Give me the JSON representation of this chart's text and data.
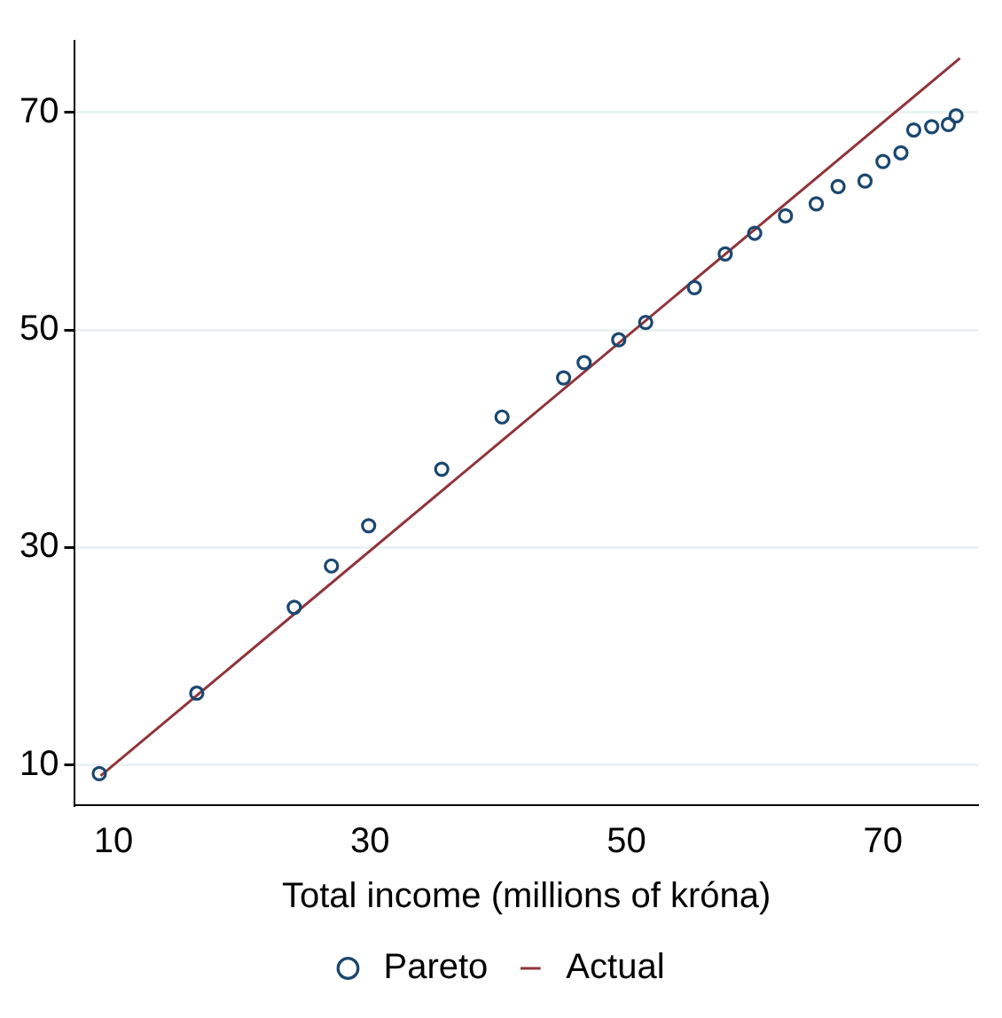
{
  "chart_data": {
    "type": "scatter",
    "xlabel": "Total income (millions of króna)",
    "xlim": [
      7,
      77.4
    ],
    "xticks": [
      10,
      30,
      50,
      70
    ],
    "ylim": [
      6.3,
      76.6
    ],
    "yticks": [
      10,
      30,
      50,
      70
    ],
    "grid": "y",
    "legend": "bottom",
    "series": [
      {
        "name": "Pareto",
        "type": "scatter",
        "marker": "circle",
        "color": "#1a476f",
        "x": [
          8.9,
          16.5,
          24.1,
          27.0,
          29.9,
          35.6,
          40.3,
          45.1,
          46.7,
          49.4,
          51.5,
          55.3,
          57.7,
          60.0,
          62.4,
          64.8,
          66.5,
          68.6,
          70.0,
          71.4,
          72.4,
          73.8,
          75.1,
          75.7
        ],
        "values": [
          9.2,
          16.6,
          24.5,
          28.3,
          32.0,
          37.2,
          42.0,
          45.6,
          47.0,
          49.1,
          50.7,
          53.9,
          57.0,
          58.9,
          60.5,
          61.6,
          63.2,
          63.7,
          65.5,
          66.3,
          68.4,
          68.7,
          68.9,
          69.7
        ]
      },
      {
        "name": "Actual",
        "type": "line",
        "marker": "none",
        "color": "#90353b",
        "x": [
          9,
          76
        ],
        "values": [
          9,
          75
        ]
      }
    ]
  }
}
